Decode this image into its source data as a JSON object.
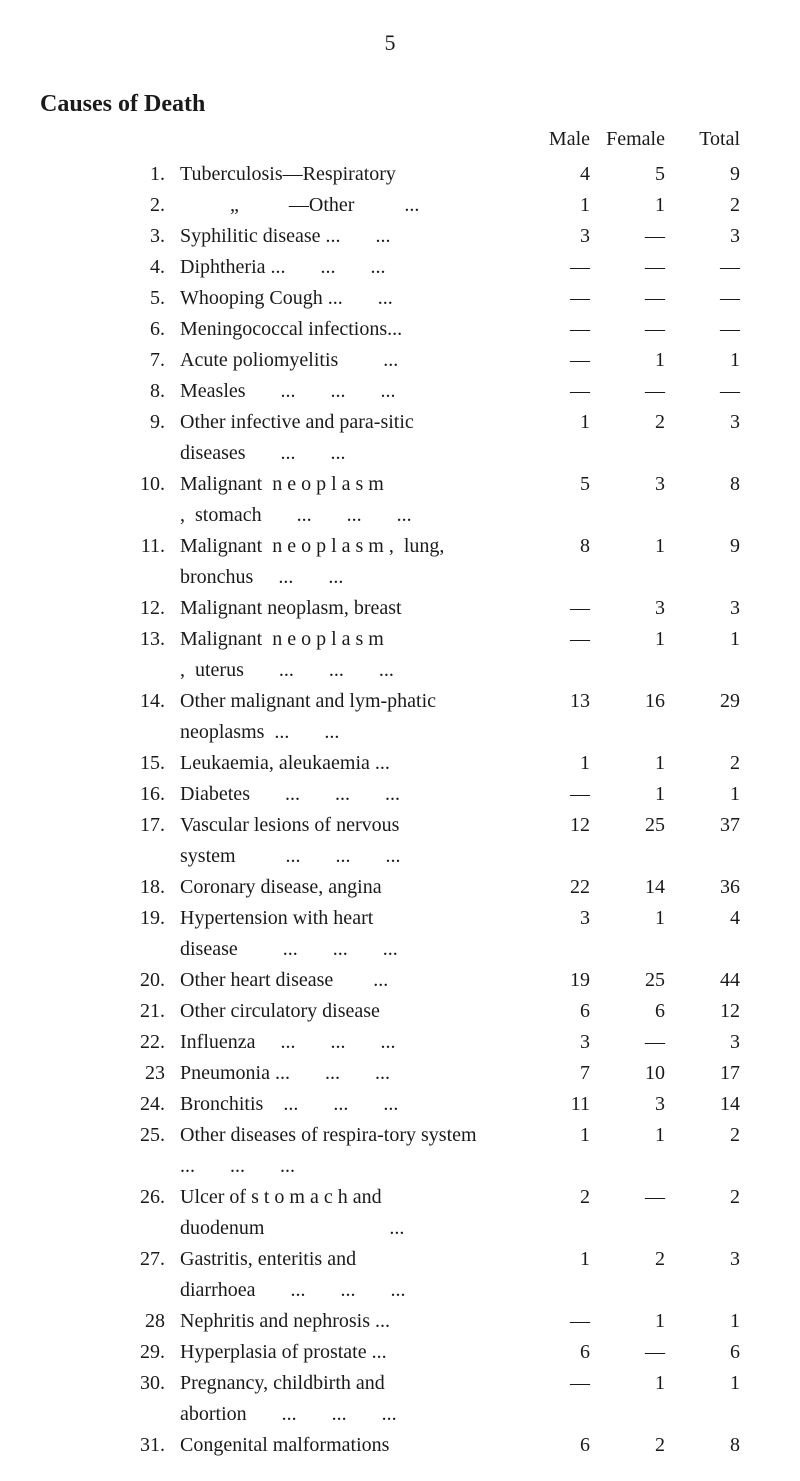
{
  "page_number": "5",
  "title": "Causes of Death",
  "headers": {
    "male": "Male",
    "female": "Female",
    "total": "Total"
  },
  "dash": "—",
  "rows": [
    {
      "n": "1.",
      "cause": "Tuberculosis—Respiratory",
      "m": "4",
      "f": "5",
      "t": "9"
    },
    {
      "n": "2.",
      "cause": "          „          —Other          ...",
      "m": "1",
      "f": "1",
      "t": "2"
    },
    {
      "n": "3.",
      "cause": "Syphilitic disease ...       ...",
      "m": "3",
      "f": "—",
      "t": "3"
    },
    {
      "n": "4.",
      "cause": "Diphtheria ...       ...       ...",
      "m": "—",
      "f": "—",
      "t": "—"
    },
    {
      "n": "5.",
      "cause": "Whooping Cough ...       ...",
      "m": "—",
      "f": "—",
      "t": "—"
    },
    {
      "n": "6.",
      "cause": "Meningococcal infections...",
      "m": "—",
      "f": "—",
      "t": "—"
    },
    {
      "n": "7.",
      "cause": "Acute poliomyelitis         ...",
      "m": "—",
      "f": "1",
      "t": "1"
    },
    {
      "n": "8.",
      "cause": "Measles       ...       ...       ...",
      "m": "—",
      "f": "—",
      "t": "—"
    },
    {
      "n": "9.",
      "cause": "Other infective and para-sitic diseases       ...       ...",
      "m": "1",
      "f": "2",
      "t": "3"
    },
    {
      "n": "10.",
      "cause": "Malignant  n e o p l a s m ,  stomach       ...       ...       ...",
      "m": "5",
      "f": "3",
      "t": "8"
    },
    {
      "n": "11.",
      "cause": "Malignant  n e o p l a s m ,  lung, bronchus     ...       ...",
      "m": "8",
      "f": "1",
      "t": "9"
    },
    {
      "n": "12.",
      "cause": "Malignant neoplasm, breast",
      "m": "—",
      "f": "3",
      "t": "3"
    },
    {
      "n": "13.",
      "cause": "Malignant  n e o p l a s m ,  uterus       ...       ...       ...",
      "m": "—",
      "f": "1",
      "t": "1"
    },
    {
      "n": "14.",
      "cause": "Other malignant and lym-phatic neoplasms  ...       ...",
      "m": "13",
      "f": "16",
      "t": "29"
    },
    {
      "n": "15.",
      "cause": "Leukaemia, aleukaemia ...",
      "m": "1",
      "f": "1",
      "t": "2"
    },
    {
      "n": "16.",
      "cause": "Diabetes       ...       ...       ...",
      "m": "—",
      "f": "1",
      "t": "1"
    },
    {
      "n": "17.",
      "cause": "Vascular lesions of nervous system          ...       ...       ...",
      "m": "12",
      "f": "25",
      "t": "37"
    },
    {
      "n": "18.",
      "cause": "Coronary disease, angina",
      "m": "22",
      "f": "14",
      "t": "36"
    },
    {
      "n": "19.",
      "cause": "Hypertension with heart disease         ...       ...       ...",
      "m": "3",
      "f": "1",
      "t": "4"
    },
    {
      "n": "20.",
      "cause": "Other heart disease        ...",
      "m": "19",
      "f": "25",
      "t": "44"
    },
    {
      "n": "21.",
      "cause": "Other circulatory disease",
      "m": "6",
      "f": "6",
      "t": "12"
    },
    {
      "n": "22.",
      "cause": "Influenza     ...       ...       ...",
      "m": "3",
      "f": "—",
      "t": "3"
    },
    {
      "n": "23",
      "cause": "Pneumonia ...       ...       ...",
      "m": "7",
      "f": "10",
      "t": "17"
    },
    {
      "n": "24.",
      "cause": "Bronchitis    ...       ...       ...",
      "m": "11",
      "f": "3",
      "t": "14"
    },
    {
      "n": "25.",
      "cause": "Other diseases of respira-tory system ...       ...       ...",
      "m": "1",
      "f": "1",
      "t": "2"
    },
    {
      "n": "26.",
      "cause": "Ulcer of s t o m a c h and duodenum                         ...",
      "m": "2",
      "f": "—",
      "t": "2"
    },
    {
      "n": "27.",
      "cause": "Gastritis, enteritis and diarrhoea       ...       ...       ...",
      "m": "1",
      "f": "2",
      "t": "3"
    },
    {
      "n": "28",
      "cause": "Nephritis and nephrosis ...",
      "m": "—",
      "f": "1",
      "t": "1"
    },
    {
      "n": "29.",
      "cause": "Hyperplasia of prostate ...",
      "m": "6",
      "f": "—",
      "t": "6"
    },
    {
      "n": "30.",
      "cause": "Pregnancy, childbirth and abortion       ...       ...       ...",
      "m": "—",
      "f": "1",
      "t": "1"
    },
    {
      "n": "31.",
      "cause": "Congenital malformations",
      "m": "6",
      "f": "2",
      "t": "8"
    }
  ]
}
